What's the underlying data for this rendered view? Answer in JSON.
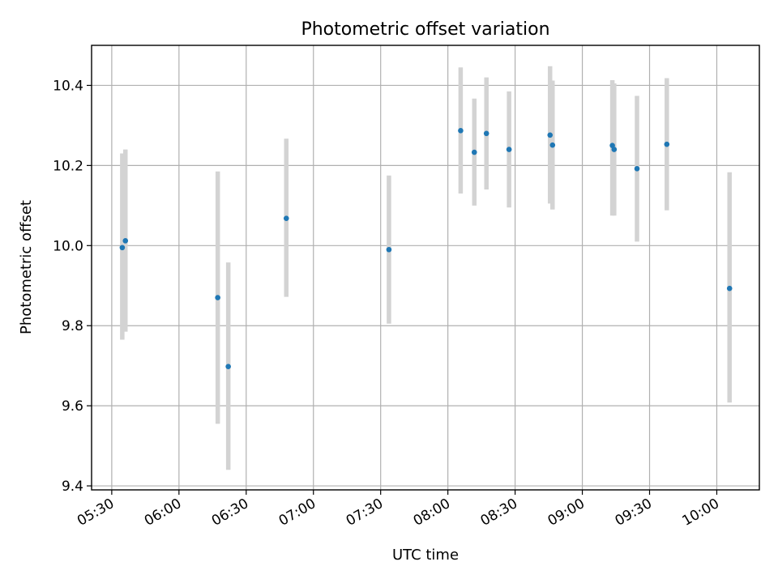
{
  "chart_data": {
    "type": "scatter",
    "title": "Photometric offset variation",
    "xlabel": "UTC time",
    "ylabel": "Photometric offset",
    "xlim": [
      "05:21",
      "10:19"
    ],
    "ylim": [
      9.39,
      10.5
    ],
    "grid": true,
    "x_ticks": [
      "05:30",
      "06:00",
      "06:30",
      "07:00",
      "07:30",
      "08:00",
      "08:30",
      "09:00",
      "09:30",
      "10:00"
    ],
    "y_ticks": [
      "9.4",
      "9.6",
      "9.8",
      "10.0",
      "10.2",
      "10.4"
    ],
    "series": [
      {
        "points": [
          {
            "x": "05:34.7",
            "y": 9.995,
            "err_low": 9.765,
            "err_high": 10.23
          },
          {
            "x": "05:36.1",
            "y": 10.012,
            "err_low": 9.785,
            "err_high": 10.24
          },
          {
            "x": "06:17.3",
            "y": 9.87,
            "err_low": 9.555,
            "err_high": 10.185
          },
          {
            "x": "06:22.0",
            "y": 9.698,
            "err_low": 9.44,
            "err_high": 9.958
          },
          {
            "x": "06:47.9",
            "y": 10.068,
            "err_low": 9.872,
            "err_high": 10.267
          },
          {
            "x": "07:33.7",
            "y": 9.99,
            "err_low": 9.805,
            "err_high": 10.175
          },
          {
            "x": "08:05.7",
            "y": 10.287,
            "err_low": 10.13,
            "err_high": 10.445
          },
          {
            "x": "08:11.8",
            "y": 10.233,
            "err_low": 10.1,
            "err_high": 10.367
          },
          {
            "x": "08:17.2",
            "y": 10.28,
            "err_low": 10.14,
            "err_high": 10.42
          },
          {
            "x": "08:27.3",
            "y": 10.24,
            "err_low": 10.095,
            "err_high": 10.385
          },
          {
            "x": "08:45.6",
            "y": 10.276,
            "err_low": 10.105,
            "err_high": 10.448
          },
          {
            "x": "08:46.7",
            "y": 10.251,
            "err_low": 10.09,
            "err_high": 10.412
          },
          {
            "x": "09:13.4",
            "y": 10.25,
            "err_low": 10.075,
            "err_high": 10.413
          },
          {
            "x": "09:14.2",
            "y": 10.24,
            "err_low": 10.075,
            "err_high": 10.405
          },
          {
            "x": "09:24.4",
            "y": 10.192,
            "err_low": 10.01,
            "err_high": 10.374
          },
          {
            "x": "09:37.7",
            "y": 10.253,
            "err_low": 10.088,
            "err_high": 10.418
          },
          {
            "x": "10:05.7",
            "y": 9.893,
            "err_low": 9.608,
            "err_high": 10.183
          }
        ]
      }
    ],
    "colors": {
      "point": "#1f77b4",
      "errorbar": "#d3d3d3",
      "grid": "#b0b0b0"
    }
  }
}
